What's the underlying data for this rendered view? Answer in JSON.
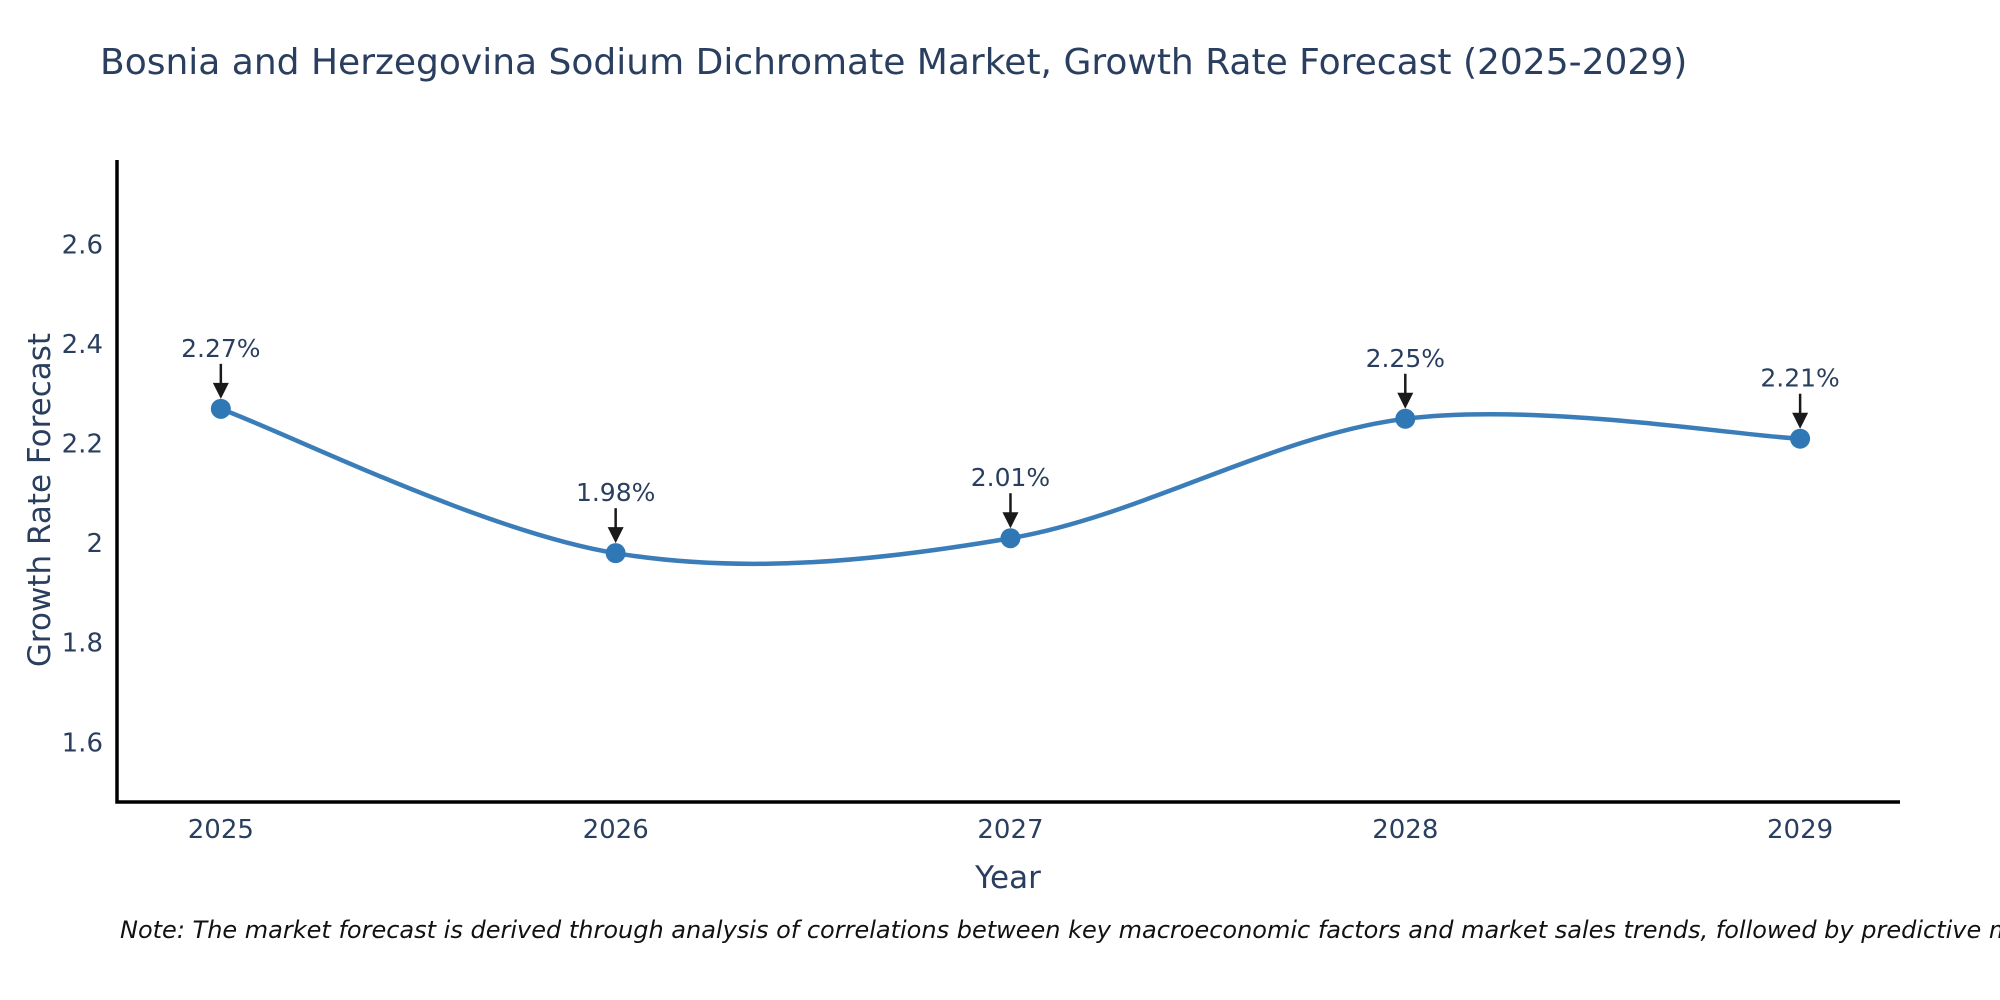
{
  "title": "Bosnia and Herzegovina Sodium Dichromate Market, Growth Rate Forecast (2025-2029)",
  "note": "Note: The market forecast is derived through analysis of correlations between key macroeconomic factors and market sales trends, followed by predictive modeling to project future sales",
  "chart_data": {
    "type": "line",
    "title": "Bosnia and Herzegovina Sodium Dichromate Market, Growth Rate Forecast (2025-2029)",
    "xlabel": "Year",
    "ylabel": "Growth Rate Forecast",
    "x": [
      2025,
      2026,
      2027,
      2028,
      2029
    ],
    "values": [
      2.27,
      1.98,
      2.01,
      2.25,
      2.21
    ],
    "point_labels": [
      "2.27%",
      "1.98%",
      "2.01%",
      "2.25%",
      "2.21%"
    ],
    "xticks": [
      2025,
      2026,
      2027,
      2028,
      2029
    ],
    "xtick_labels": [
      "2025",
      "2026",
      "2027",
      "2028",
      "2029"
    ],
    "yticks": [
      1.6,
      1.8,
      2.0,
      2.2,
      2.4,
      2.6
    ],
    "ytick_labels": [
      "1.6",
      "1.8",
      "2",
      "2.2",
      "2.4",
      "2.6"
    ],
    "xlim": [
      2024.737,
      2029.253
    ],
    "ylim": [
      1.48,
      2.77
    ],
    "line_shape": "spline",
    "grid": false,
    "legend": "none",
    "colors": {
      "line": "#3b7db8",
      "marker": "#2f78b5",
      "axis": "#000000",
      "tick_text": "#2a3f5f",
      "annotation_text": "#2a3f5f",
      "annotation_arrow": "#1a1a1a",
      "title_text": "#2a3f5f",
      "note_text": "#111111",
      "background": "#ffffff"
    }
  }
}
